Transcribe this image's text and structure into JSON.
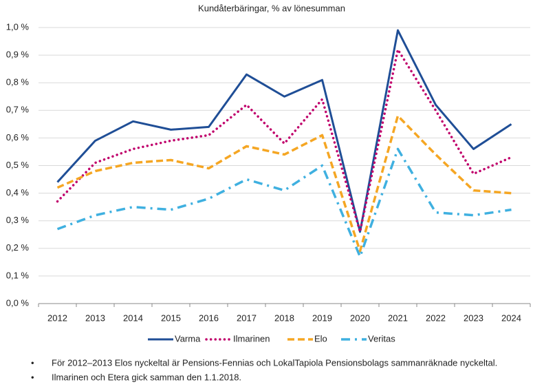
{
  "chart_data": {
    "type": "line",
    "title": "Kundåterbäringar, % av lönesumman",
    "categories": [
      "2012",
      "2013",
      "2014",
      "2015",
      "2016",
      "2017",
      "2018",
      "2019",
      "2020",
      "2021",
      "2022",
      "2023",
      "2024"
    ],
    "series": [
      {
        "name": "Varma",
        "color": "#1f4e96",
        "style": "solid",
        "values": [
          0.44,
          0.59,
          0.66,
          0.63,
          0.64,
          0.83,
          0.75,
          0.81,
          0.26,
          0.99,
          0.72,
          0.56,
          0.65
        ]
      },
      {
        "name": "Ilmarinen",
        "color": "#c0006b",
        "style": "dotted",
        "values": [
          0.37,
          0.51,
          0.56,
          0.59,
          0.61,
          0.72,
          0.58,
          0.74,
          0.26,
          0.92,
          0.7,
          0.47,
          0.53
        ]
      },
      {
        "name": "Elo",
        "color": "#f5a623",
        "style": "dashed",
        "values": [
          0.42,
          0.48,
          0.51,
          0.52,
          0.49,
          0.57,
          0.54,
          0.61,
          0.19,
          0.68,
          0.54,
          0.41,
          0.4
        ]
      },
      {
        "name": "Veritas",
        "color": "#3fb0e0",
        "style": "dashdot",
        "values": [
          0.27,
          0.32,
          0.35,
          0.34,
          0.38,
          0.45,
          0.41,
          0.5,
          0.17,
          0.56,
          0.33,
          0.32,
          0.34
        ]
      }
    ],
    "ylim": [
      0,
      1.0
    ],
    "yticks": [
      {
        "value": 0,
        "label": "0,0 %"
      },
      {
        "value": 0.1,
        "label": "0,1 %"
      },
      {
        "value": 0.2,
        "label": "0,2 %"
      },
      {
        "value": 0.3,
        "label": "0,3 %"
      },
      {
        "value": 0.4,
        "label": "0,4 %"
      },
      {
        "value": 0.5,
        "label": "0,5 %"
      },
      {
        "value": 0.6,
        "label": "0,6 %"
      },
      {
        "value": 0.7,
        "label": "0,7 %"
      },
      {
        "value": 0.8,
        "label": "0,8 %"
      },
      {
        "value": 0.9,
        "label": "0,9 %"
      },
      {
        "value": 1.0,
        "label": "1,0 %"
      }
    ],
    "grid": true,
    "legend": "bottom"
  },
  "notes": [
    "För 2012–2013 Elos nyckeltal är Pensions-Fennias och LokalTapiola Pensionsbolags sammanräknade nyckeltal.",
    "Ilmarinen och Etera gick samman den 1.1.2018."
  ]
}
